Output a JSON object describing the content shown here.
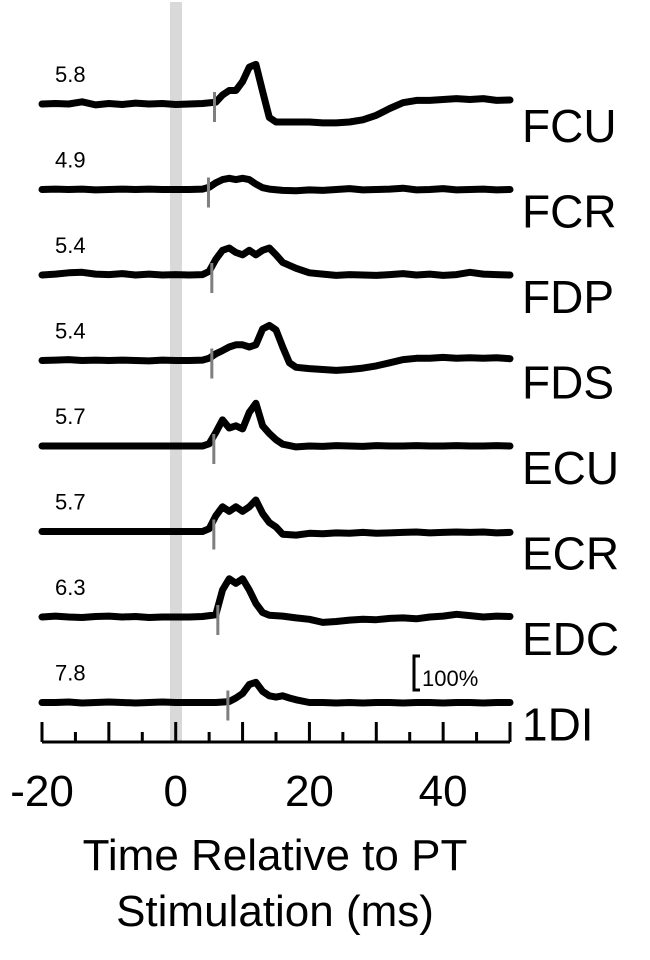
{
  "chart_data": {
    "type": "line",
    "xlabel_line1": "Time Relative to PT",
    "xlabel_line2": "Stimulation (ms)",
    "xlim": [
      -20,
      50
    ],
    "x_ticks_labeled": [
      "-20",
      "0",
      "20",
      "40"
    ],
    "x_tick_values_labeled": [
      -20,
      0,
      20,
      40
    ],
    "x_minor_tick_step": 5,
    "stimulus_marker_x": 0,
    "stimulus_marker_color": "#d9d9d9",
    "onset_marker_color": "#7f7f7f",
    "trace_color": "#000000",
    "scale_bar_label": "100%",
    "scale_bar_value_percent": 100,
    "series": [
      {
        "name": "FCU",
        "latency_label": "5.8",
        "onset_ms": 5.8,
        "x": [
          -20,
          -18,
          -16,
          -14,
          -12,
          -10,
          -8,
          -6,
          -4,
          -2,
          0,
          2,
          4,
          6,
          7,
          8,
          9,
          10,
          11,
          12,
          13,
          14,
          15,
          16,
          18,
          20,
          22,
          24,
          26,
          28,
          30,
          32,
          34,
          36,
          38,
          40,
          42,
          44,
          46,
          48,
          50
        ],
        "y": [
          0,
          1,
          0,
          5,
          -2,
          1,
          -1,
          2,
          0,
          1,
          -1,
          0,
          1,
          4,
          20,
          30,
          30,
          50,
          82,
          88,
          28,
          -30,
          -40,
          -40,
          -40,
          -40,
          -42,
          -42,
          -40,
          -35,
          -25,
          -10,
          3,
          8,
          8,
          10,
          12,
          10,
          12,
          8,
          9
        ]
      },
      {
        "name": "FCR",
        "latency_label": "4.9",
        "onset_ms": 4.9,
        "x": [
          -20,
          -18,
          -16,
          -14,
          -12,
          -10,
          -8,
          -6,
          -4,
          -2,
          0,
          2,
          4,
          5,
          6,
          7,
          8,
          9,
          10,
          11,
          12,
          13,
          14,
          16,
          18,
          20,
          22,
          24,
          26,
          28,
          30,
          32,
          34,
          36,
          38,
          40,
          42,
          44,
          46,
          48,
          50
        ],
        "y": [
          0,
          1,
          0,
          1,
          -1,
          0,
          1,
          0,
          1,
          0,
          0,
          0,
          1,
          5,
          15,
          22,
          25,
          22,
          25,
          22,
          12,
          4,
          1,
          -2,
          -3,
          -1,
          -2,
          0,
          2,
          -1,
          0,
          1,
          3,
          -1,
          0,
          2,
          -1,
          0,
          1,
          -1,
          0
        ]
      },
      {
        "name": "FDP",
        "latency_label": "5.4",
        "onset_ms": 5.4,
        "x": [
          -20,
          -18,
          -16,
          -14,
          -12,
          -10,
          -8,
          -6,
          -4,
          -2,
          0,
          2,
          4,
          5,
          6,
          7,
          8,
          9,
          10,
          11,
          12,
          13,
          14,
          15,
          16,
          18,
          20,
          22,
          24,
          26,
          28,
          30,
          32,
          34,
          36,
          38,
          40,
          42,
          44,
          46,
          48,
          50
        ],
        "y": [
          0,
          2,
          5,
          6,
          2,
          1,
          3,
          0,
          2,
          0,
          1,
          0,
          1,
          8,
          35,
          55,
          60,
          50,
          45,
          55,
          45,
          55,
          60,
          45,
          28,
          15,
          5,
          2,
          -1,
          1,
          0,
          -1,
          1,
          3,
          0,
          2,
          -1,
          1,
          6,
          2,
          1,
          0
        ]
      },
      {
        "name": "FDS",
        "latency_label": "5.4",
        "onset_ms": 5.4,
        "x": [
          -20,
          -18,
          -16,
          -14,
          -12,
          -10,
          -8,
          -6,
          -4,
          -2,
          0,
          2,
          4,
          5,
          6,
          7,
          8,
          9,
          10,
          11,
          12,
          13,
          14,
          15,
          16,
          17,
          18,
          20,
          22,
          24,
          26,
          28,
          30,
          32,
          34,
          36,
          38,
          40,
          42,
          44,
          46,
          48,
          50
        ],
        "y": [
          0,
          1,
          2,
          0,
          1,
          0,
          1,
          0,
          -1,
          1,
          0,
          0,
          1,
          5,
          15,
          22,
          30,
          35,
          35,
          30,
          35,
          70,
          78,
          68,
          30,
          -5,
          -15,
          -18,
          -20,
          -22,
          -20,
          -17,
          -12,
          -5,
          2,
          5,
          5,
          7,
          5,
          6,
          5,
          6,
          4
        ]
      },
      {
        "name": "ECU",
        "latency_label": "5.7",
        "onset_ms": 5.7,
        "x": [
          -20,
          -18,
          -16,
          -14,
          -12,
          -10,
          -8,
          -6,
          -4,
          -2,
          0,
          2,
          4,
          5,
          6,
          7,
          8,
          9,
          10,
          11,
          12,
          13,
          14,
          15,
          16,
          18,
          20,
          22,
          24,
          26,
          28,
          30,
          32,
          34,
          36,
          38,
          40,
          42,
          44,
          46,
          48,
          50
        ],
        "y": [
          0,
          0,
          0,
          0,
          0,
          0,
          0,
          0,
          0,
          0,
          0,
          0,
          0,
          5,
          30,
          58,
          40,
          45,
          38,
          75,
          95,
          45,
          28,
          14,
          4,
          -2,
          0,
          -1,
          1,
          0,
          -1,
          1,
          0,
          0,
          1,
          0,
          0,
          1,
          0,
          0,
          1,
          0
        ]
      },
      {
        "name": "ECR",
        "latency_label": "5.7",
        "onset_ms": 5.7,
        "x": [
          -20,
          -18,
          -16,
          -14,
          -12,
          -10,
          -8,
          -6,
          -4,
          -2,
          0,
          2,
          4,
          5,
          6,
          7,
          8,
          9,
          10,
          11,
          12,
          13,
          14,
          15,
          16,
          18,
          20,
          22,
          24,
          26,
          28,
          30,
          32,
          34,
          36,
          38,
          40,
          42,
          44,
          46,
          48,
          50
        ],
        "y": [
          0,
          0,
          0,
          0,
          0,
          0,
          0,
          0,
          0,
          0,
          0,
          0,
          0,
          6,
          35,
          55,
          45,
          55,
          45,
          55,
          70,
          40,
          20,
          10,
          -6,
          -8,
          -4,
          -5,
          -3,
          -4,
          -2,
          -4,
          -3,
          -2,
          -1,
          -3,
          -2,
          -1,
          -2,
          -1,
          -3,
          -2
        ]
      },
      {
        "name": "EDC",
        "latency_label": "6.3",
        "onset_ms": 6.3,
        "x": [
          -20,
          -18,
          -16,
          -14,
          -12,
          -10,
          -8,
          -6,
          -4,
          -2,
          0,
          2,
          4,
          6,
          7,
          8,
          9,
          10,
          11,
          12,
          13,
          14,
          16,
          18,
          20,
          22,
          24,
          26,
          28,
          30,
          32,
          34,
          36,
          38,
          40,
          42,
          44,
          46,
          48,
          50
        ],
        "y": [
          0,
          2,
          0,
          -1,
          1,
          2,
          0,
          1,
          -1,
          0,
          0,
          0,
          1,
          5,
          60,
          85,
          75,
          85,
          60,
          30,
          10,
          4,
          2,
          -2,
          -5,
          -12,
          -10,
          -7,
          -5,
          -6,
          -3,
          -2,
          -4,
          0,
          2,
          6,
          3,
          0,
          2,
          1
        ]
      },
      {
        "name": "1DI",
        "latency_label": "7.8",
        "onset_ms": 7.8,
        "x": [
          -20,
          -18,
          -16,
          -14,
          -12,
          -10,
          -8,
          -6,
          -4,
          -2,
          0,
          2,
          4,
          6,
          8,
          9,
          10,
          11,
          12,
          13,
          14,
          15,
          16,
          17,
          18,
          20,
          22,
          24,
          26,
          28,
          30,
          32,
          34,
          36,
          38,
          40,
          42,
          44,
          46,
          48,
          50
        ],
        "y": [
          0,
          0,
          1,
          -1,
          0,
          1,
          0,
          -1,
          0,
          1,
          0,
          0,
          0,
          0,
          2,
          10,
          20,
          40,
          45,
          25,
          15,
          12,
          15,
          10,
          6,
          0,
          0,
          -1,
          0,
          -1,
          0,
          0,
          -1,
          0,
          0,
          -1,
          0,
          0,
          -1,
          0,
          0
        ]
      }
    ]
  }
}
